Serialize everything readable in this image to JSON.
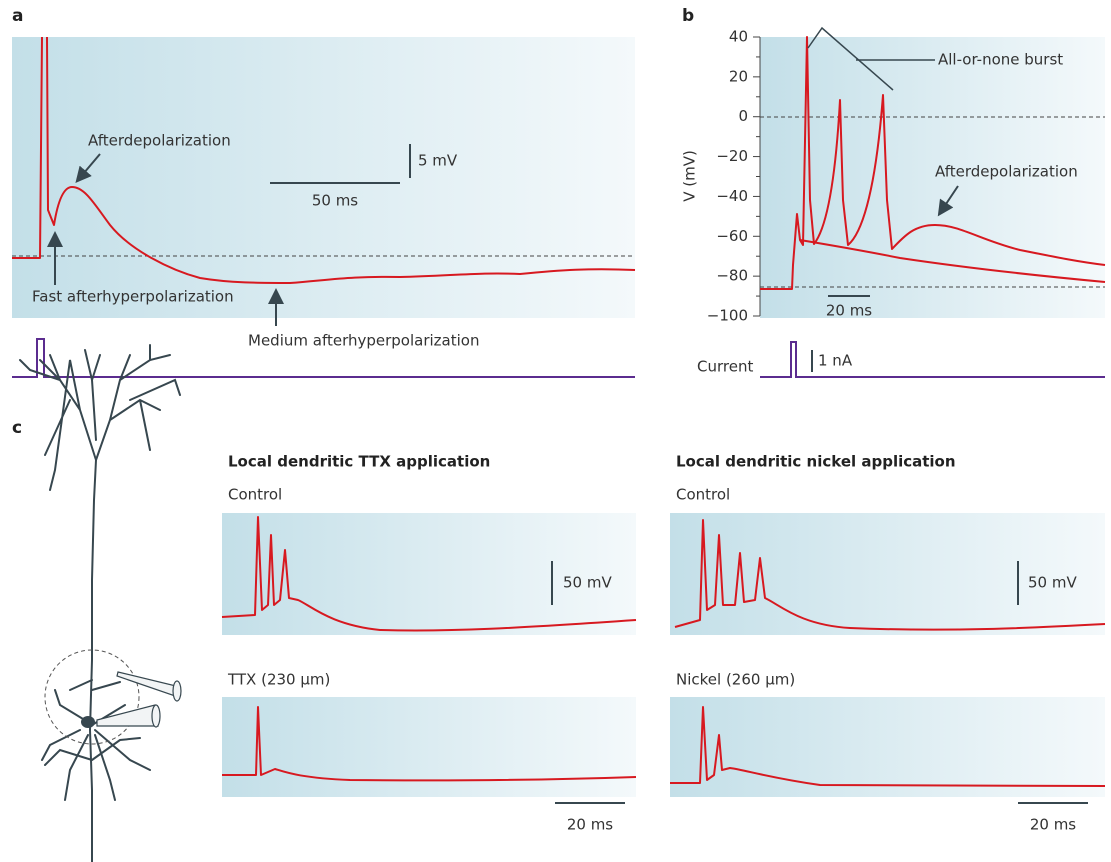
{
  "a": {
    "label": "a",
    "annotations": [
      "Afterdepolarization",
      "Fast afterhyperpolarization",
      "Medium afterhyperpolarization"
    ],
    "scale_voltage": "5 mV",
    "scale_time": "50 ms"
  },
  "b": {
    "label": "b",
    "y_label": "V (mV)",
    "ylim": [
      -100,
      40
    ],
    "yticks": [
      40,
      20,
      0,
      {
        "value": -20,
        "label": "−20"
      },
      {
        "value": -40,
        "label": "−40"
      },
      {
        "value": -60,
        "label": "−60"
      },
      {
        "value": -80,
        "label": "−80"
      },
      {
        "value": -100,
        "label": "−100"
      }
    ],
    "yticks_minor": [
      30,
      10,
      -10,
      -30,
      -50,
      -70,
      -90
    ],
    "annotations": [
      "All-or-none burst",
      "Afterdepolarization"
    ],
    "scale_time": "20 ms",
    "current_label": "Current",
    "scale_current": "1 nA"
  },
  "c": {
    "label": "c",
    "columns": [
      {
        "title": "Local dendritic TTX application",
        "traces": [
          "Control",
          "TTX (230 μm)"
        ],
        "scale_voltage": "50 mV",
        "scale_time": "20 ms"
      },
      {
        "title": "Local dendritic nickel application",
        "traces": [
          "Control",
          "Nickel (260 μm)"
        ],
        "scale_voltage": "50 mV",
        "scale_time": "20 ms"
      }
    ]
  }
}
